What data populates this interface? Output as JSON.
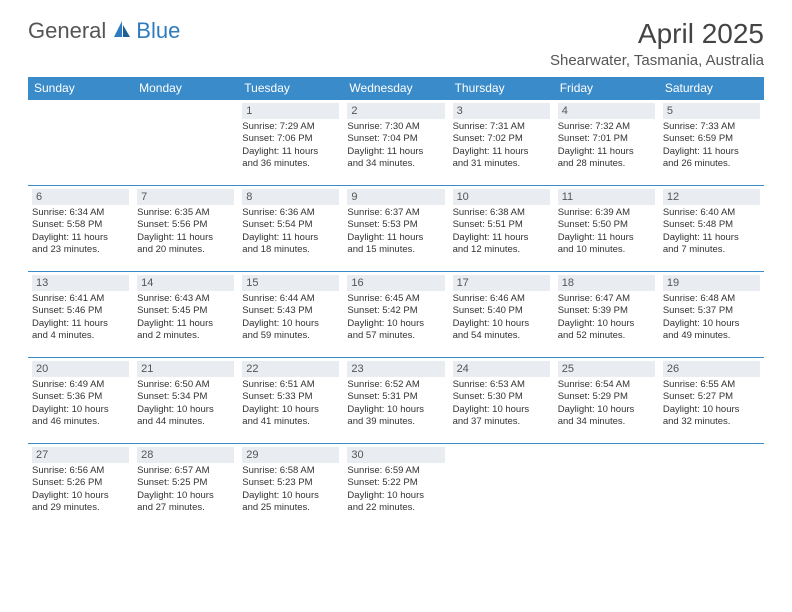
{
  "brand": {
    "part1": "General",
    "part2": "Blue"
  },
  "title": "April 2025",
  "location": "Shearwater, Tasmania, Australia",
  "colors": {
    "header_bg": "#3a8bc9",
    "header_text": "#ffffff",
    "daynum_bg": "#e9edf1",
    "rule": "#3a8bc9",
    "brand_blue": "#2f7bbf",
    "text": "#333333"
  },
  "weekdays": [
    "Sunday",
    "Monday",
    "Tuesday",
    "Wednesday",
    "Thursday",
    "Friday",
    "Saturday"
  ],
  "weeks": [
    [
      null,
      null,
      {
        "n": "1",
        "sr": "Sunrise: 7:29 AM",
        "ss": "Sunset: 7:06 PM",
        "dl1": "Daylight: 11 hours",
        "dl2": "and 36 minutes."
      },
      {
        "n": "2",
        "sr": "Sunrise: 7:30 AM",
        "ss": "Sunset: 7:04 PM",
        "dl1": "Daylight: 11 hours",
        "dl2": "and 34 minutes."
      },
      {
        "n": "3",
        "sr": "Sunrise: 7:31 AM",
        "ss": "Sunset: 7:02 PM",
        "dl1": "Daylight: 11 hours",
        "dl2": "and 31 minutes."
      },
      {
        "n": "4",
        "sr": "Sunrise: 7:32 AM",
        "ss": "Sunset: 7:01 PM",
        "dl1": "Daylight: 11 hours",
        "dl2": "and 28 minutes."
      },
      {
        "n": "5",
        "sr": "Sunrise: 7:33 AM",
        "ss": "Sunset: 6:59 PM",
        "dl1": "Daylight: 11 hours",
        "dl2": "and 26 minutes."
      }
    ],
    [
      {
        "n": "6",
        "sr": "Sunrise: 6:34 AM",
        "ss": "Sunset: 5:58 PM",
        "dl1": "Daylight: 11 hours",
        "dl2": "and 23 minutes."
      },
      {
        "n": "7",
        "sr": "Sunrise: 6:35 AM",
        "ss": "Sunset: 5:56 PM",
        "dl1": "Daylight: 11 hours",
        "dl2": "and 20 minutes."
      },
      {
        "n": "8",
        "sr": "Sunrise: 6:36 AM",
        "ss": "Sunset: 5:54 PM",
        "dl1": "Daylight: 11 hours",
        "dl2": "and 18 minutes."
      },
      {
        "n": "9",
        "sr": "Sunrise: 6:37 AM",
        "ss": "Sunset: 5:53 PM",
        "dl1": "Daylight: 11 hours",
        "dl2": "and 15 minutes."
      },
      {
        "n": "10",
        "sr": "Sunrise: 6:38 AM",
        "ss": "Sunset: 5:51 PM",
        "dl1": "Daylight: 11 hours",
        "dl2": "and 12 minutes."
      },
      {
        "n": "11",
        "sr": "Sunrise: 6:39 AM",
        "ss": "Sunset: 5:50 PM",
        "dl1": "Daylight: 11 hours",
        "dl2": "and 10 minutes."
      },
      {
        "n": "12",
        "sr": "Sunrise: 6:40 AM",
        "ss": "Sunset: 5:48 PM",
        "dl1": "Daylight: 11 hours",
        "dl2": "and 7 minutes."
      }
    ],
    [
      {
        "n": "13",
        "sr": "Sunrise: 6:41 AM",
        "ss": "Sunset: 5:46 PM",
        "dl1": "Daylight: 11 hours",
        "dl2": "and 4 minutes."
      },
      {
        "n": "14",
        "sr": "Sunrise: 6:43 AM",
        "ss": "Sunset: 5:45 PM",
        "dl1": "Daylight: 11 hours",
        "dl2": "and 2 minutes."
      },
      {
        "n": "15",
        "sr": "Sunrise: 6:44 AM",
        "ss": "Sunset: 5:43 PM",
        "dl1": "Daylight: 10 hours",
        "dl2": "and 59 minutes."
      },
      {
        "n": "16",
        "sr": "Sunrise: 6:45 AM",
        "ss": "Sunset: 5:42 PM",
        "dl1": "Daylight: 10 hours",
        "dl2": "and 57 minutes."
      },
      {
        "n": "17",
        "sr": "Sunrise: 6:46 AM",
        "ss": "Sunset: 5:40 PM",
        "dl1": "Daylight: 10 hours",
        "dl2": "and 54 minutes."
      },
      {
        "n": "18",
        "sr": "Sunrise: 6:47 AM",
        "ss": "Sunset: 5:39 PM",
        "dl1": "Daylight: 10 hours",
        "dl2": "and 52 minutes."
      },
      {
        "n": "19",
        "sr": "Sunrise: 6:48 AM",
        "ss": "Sunset: 5:37 PM",
        "dl1": "Daylight: 10 hours",
        "dl2": "and 49 minutes."
      }
    ],
    [
      {
        "n": "20",
        "sr": "Sunrise: 6:49 AM",
        "ss": "Sunset: 5:36 PM",
        "dl1": "Daylight: 10 hours",
        "dl2": "and 46 minutes."
      },
      {
        "n": "21",
        "sr": "Sunrise: 6:50 AM",
        "ss": "Sunset: 5:34 PM",
        "dl1": "Daylight: 10 hours",
        "dl2": "and 44 minutes."
      },
      {
        "n": "22",
        "sr": "Sunrise: 6:51 AM",
        "ss": "Sunset: 5:33 PM",
        "dl1": "Daylight: 10 hours",
        "dl2": "and 41 minutes."
      },
      {
        "n": "23",
        "sr": "Sunrise: 6:52 AM",
        "ss": "Sunset: 5:31 PM",
        "dl1": "Daylight: 10 hours",
        "dl2": "and 39 minutes."
      },
      {
        "n": "24",
        "sr": "Sunrise: 6:53 AM",
        "ss": "Sunset: 5:30 PM",
        "dl1": "Daylight: 10 hours",
        "dl2": "and 37 minutes."
      },
      {
        "n": "25",
        "sr": "Sunrise: 6:54 AM",
        "ss": "Sunset: 5:29 PM",
        "dl1": "Daylight: 10 hours",
        "dl2": "and 34 minutes."
      },
      {
        "n": "26",
        "sr": "Sunrise: 6:55 AM",
        "ss": "Sunset: 5:27 PM",
        "dl1": "Daylight: 10 hours",
        "dl2": "and 32 minutes."
      }
    ],
    [
      {
        "n": "27",
        "sr": "Sunrise: 6:56 AM",
        "ss": "Sunset: 5:26 PM",
        "dl1": "Daylight: 10 hours",
        "dl2": "and 29 minutes."
      },
      {
        "n": "28",
        "sr": "Sunrise: 6:57 AM",
        "ss": "Sunset: 5:25 PM",
        "dl1": "Daylight: 10 hours",
        "dl2": "and 27 minutes."
      },
      {
        "n": "29",
        "sr": "Sunrise: 6:58 AM",
        "ss": "Sunset: 5:23 PM",
        "dl1": "Daylight: 10 hours",
        "dl2": "and 25 minutes."
      },
      {
        "n": "30",
        "sr": "Sunrise: 6:59 AM",
        "ss": "Sunset: 5:22 PM",
        "dl1": "Daylight: 10 hours",
        "dl2": "and 22 minutes."
      },
      null,
      null,
      null
    ]
  ]
}
